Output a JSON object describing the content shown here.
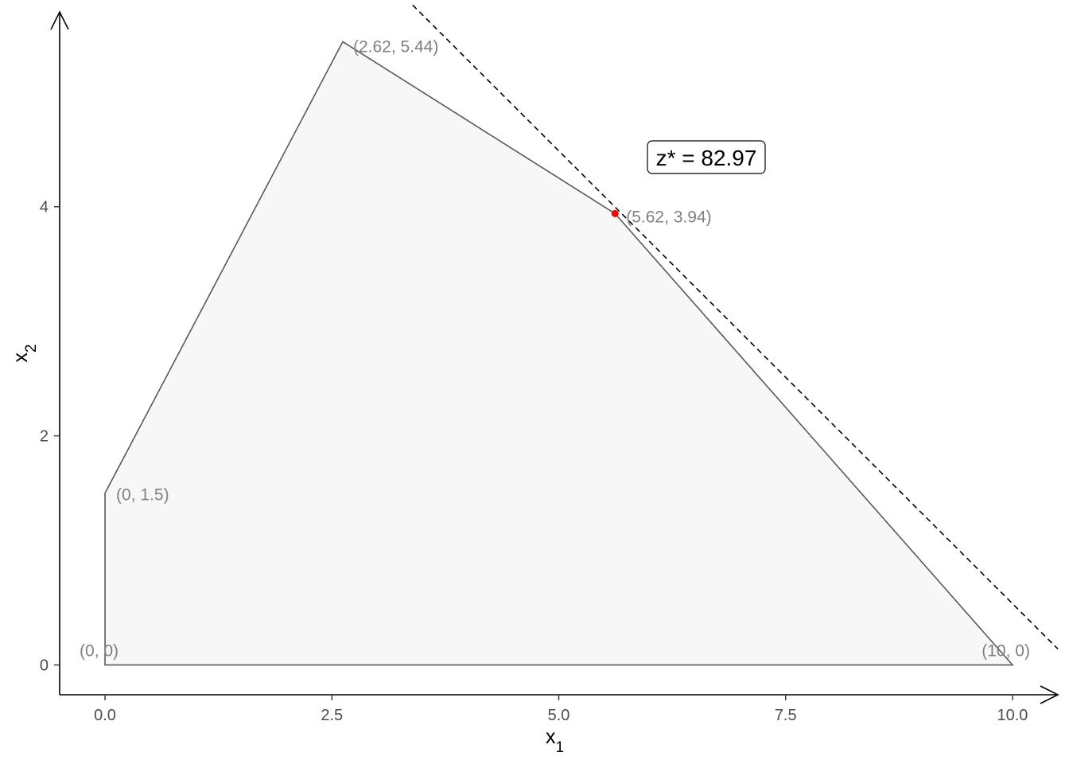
{
  "chart_data": {
    "type": "line",
    "title": "",
    "xlabel": {
      "base": "x",
      "sub": "1"
    },
    "ylabel": {
      "base": "x",
      "sub": "2"
    },
    "xlim": [
      -0.5,
      10.5
    ],
    "ylim": [
      -0.26,
      5.7
    ],
    "xticks": [
      0,
      2.5,
      5,
      7.5,
      10
    ],
    "xtick_labels": [
      "0.0",
      "2.5",
      "5.0",
      "7.5",
      "10.0"
    ],
    "yticks": [
      0,
      2,
      4
    ],
    "ytick_labels": [
      "0",
      "2",
      "4"
    ],
    "grid": false,
    "feasible_region": {
      "vertices": [
        {
          "x": 0,
          "y": 0,
          "label": "(0, 0)"
        },
        {
          "x": 0,
          "y": 1.5,
          "label": "(0, 1.5)"
        },
        {
          "x": 2.62,
          "y": 5.44,
          "label": "(2.62, 5.44)"
        },
        {
          "x": 5.62,
          "y": 3.94,
          "label": "(5.62, 3.94)"
        },
        {
          "x": 10,
          "y": 0,
          "label": "(10, 0)"
        }
      ],
      "fill": "#f7f7f7",
      "stroke": "#595959"
    },
    "objective_line": {
      "x": [
        3.39,
        10.5
      ],
      "y": [
        5.76,
        0.14
      ],
      "style": "dashed",
      "color": "#000000"
    },
    "optimum": {
      "x": 5.62,
      "y": 3.94,
      "color": "#ff0000",
      "annotation": "z* = 82.97"
    }
  }
}
